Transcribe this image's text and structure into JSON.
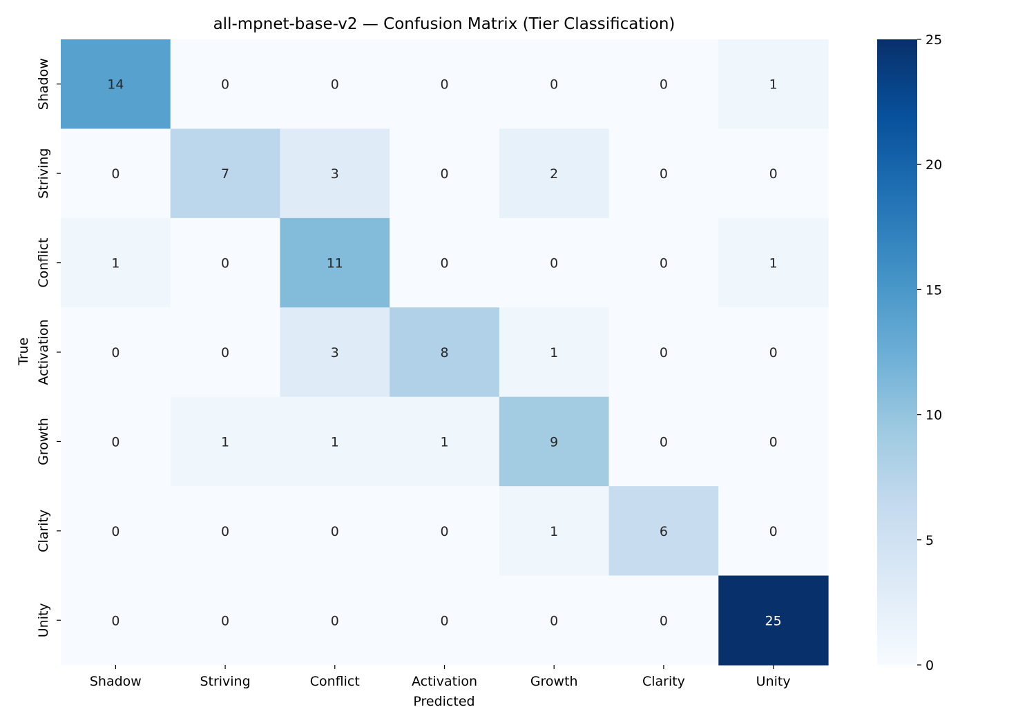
{
  "chart_data": {
    "type": "heatmap",
    "title": "all-mpnet-base-v2 — Confusion Matrix (Tier Classification)",
    "xlabel": "Predicted",
    "ylabel": "True",
    "x_categories": [
      "Shadow",
      "Striving",
      "Conflict",
      "Activation",
      "Growth",
      "Clarity",
      "Unity"
    ],
    "y_categories": [
      "Shadow",
      "Striving",
      "Conflict",
      "Activation",
      "Growth",
      "Clarity",
      "Unity"
    ],
    "values": [
      [
        14,
        0,
        0,
        0,
        0,
        0,
        1
      ],
      [
        0,
        7,
        3,
        0,
        2,
        0,
        0
      ],
      [
        1,
        0,
        11,
        0,
        0,
        0,
        1
      ],
      [
        0,
        0,
        3,
        8,
        1,
        0,
        0
      ],
      [
        0,
        1,
        1,
        1,
        9,
        0,
        0
      ],
      [
        0,
        0,
        0,
        0,
        1,
        6,
        0
      ],
      [
        0,
        0,
        0,
        0,
        0,
        0,
        25
      ]
    ],
    "colorbar": {
      "min": 0,
      "max": 25,
      "ticks": [
        0,
        5,
        10,
        15,
        20,
        25
      ],
      "colormap": "Blues"
    }
  }
}
